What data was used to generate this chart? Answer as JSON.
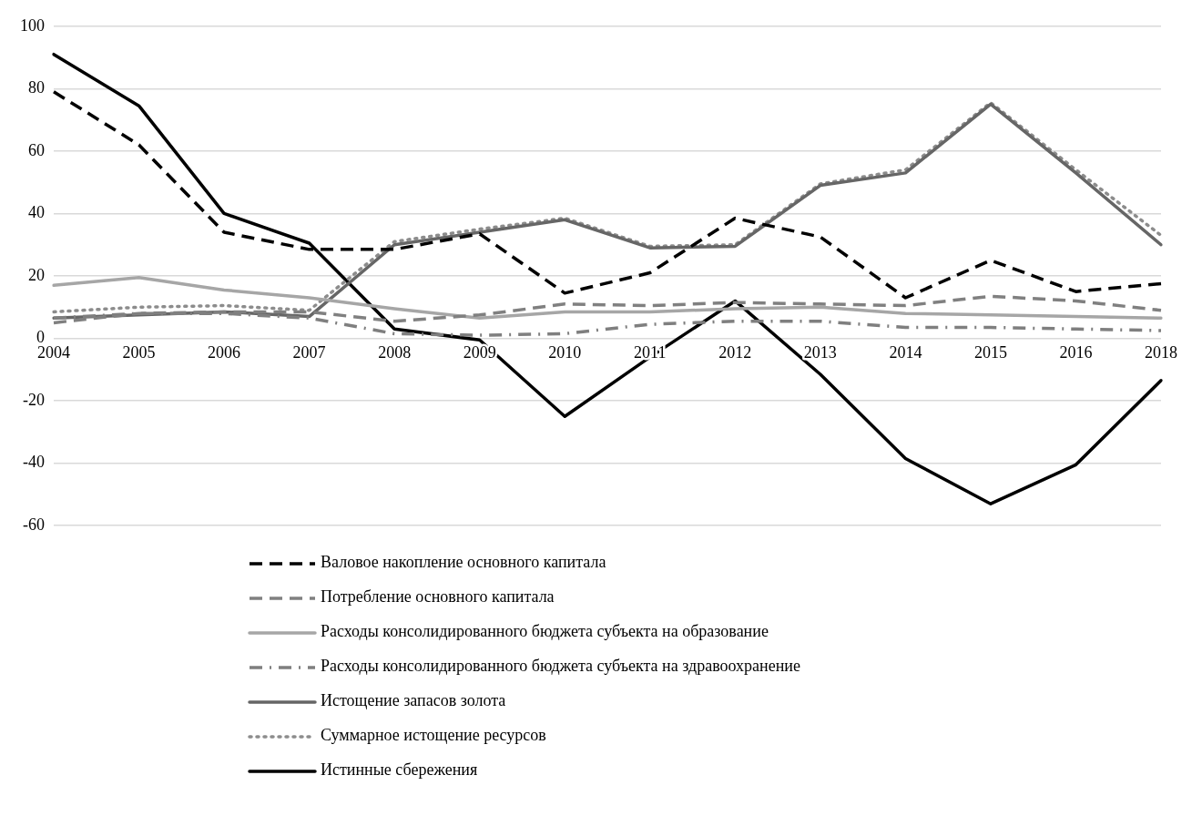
{
  "chart_data": {
    "type": "line",
    "categories": [
      "2004",
      "2005",
      "2006",
      "2007",
      "2008",
      "2009",
      "2010",
      "2011",
      "2012",
      "2013",
      "2014",
      "2015",
      "2016",
      "2018"
    ],
    "ylim": [
      -60,
      100
    ],
    "yticks": [
      -60,
      -40,
      -20,
      0,
      20,
      40,
      60,
      80,
      100
    ],
    "grid": "y",
    "legend": "bottom",
    "marker": "none",
    "series": [
      {
        "name": "Валовое накопление основного капитала",
        "color": "#000000",
        "line_style": "dashed",
        "values": [
          79,
          62,
          34,
          28.5,
          28.5,
          33.5,
          14.5,
          21,
          38.5,
          32.5,
          13,
          25,
          15,
          17.5
        ]
      },
      {
        "name": "Потребление основного капитала",
        "color": "#808080",
        "line_style": "dashed",
        "values": [
          5,
          8,
          8.5,
          8.5,
          5.5,
          7.5,
          11,
          10.5,
          11.5,
          11,
          10.5,
          13.5,
          12,
          9
        ]
      },
      {
        "name": "Расходы консолидированного бюджета субъекта на образование",
        "color": "#a6a6a6",
        "line_style": "solid",
        "values": [
          17,
          19.5,
          15.5,
          13,
          9.5,
          6.5,
          8.5,
          8.5,
          9.5,
          10,
          8,
          7.5,
          7,
          6.5
        ]
      },
      {
        "name": "Расходы консолидированного бюджета субъекта на здравоохранение",
        "color": "#7f7f7f",
        "line_style": "dashdot",
        "values": [
          6.5,
          8,
          8,
          6.5,
          1.5,
          1,
          1.5,
          4.5,
          5.5,
          5.5,
          3.5,
          3.5,
          3,
          2.5
        ]
      },
      {
        "name": "Истощение запасов золота",
        "color": "#666666",
        "line_style": "solid",
        "values": [
          6.5,
          7.5,
          8.5,
          7,
          30,
          34,
          38,
          29,
          29.5,
          49,
          53,
          75,
          53,
          30
        ]
      },
      {
        "name": "Суммарное истощение ресурсов",
        "color": "#8c8c8c",
        "line_style": "dotted",
        "values": [
          8.5,
          10,
          10.5,
          9,
          31,
          35,
          38.5,
          29.5,
          30,
          49.5,
          54,
          75.5,
          54,
          33
        ]
      },
      {
        "name": "Истинные сбережения",
        "color": "#000000",
        "line_style": "solid",
        "values": [
          91,
          74.5,
          40,
          30.5,
          3,
          -0.5,
          -25,
          -6,
          12,
          -11.5,
          -38.5,
          -53,
          -40.5,
          -13.5
        ]
      }
    ]
  }
}
